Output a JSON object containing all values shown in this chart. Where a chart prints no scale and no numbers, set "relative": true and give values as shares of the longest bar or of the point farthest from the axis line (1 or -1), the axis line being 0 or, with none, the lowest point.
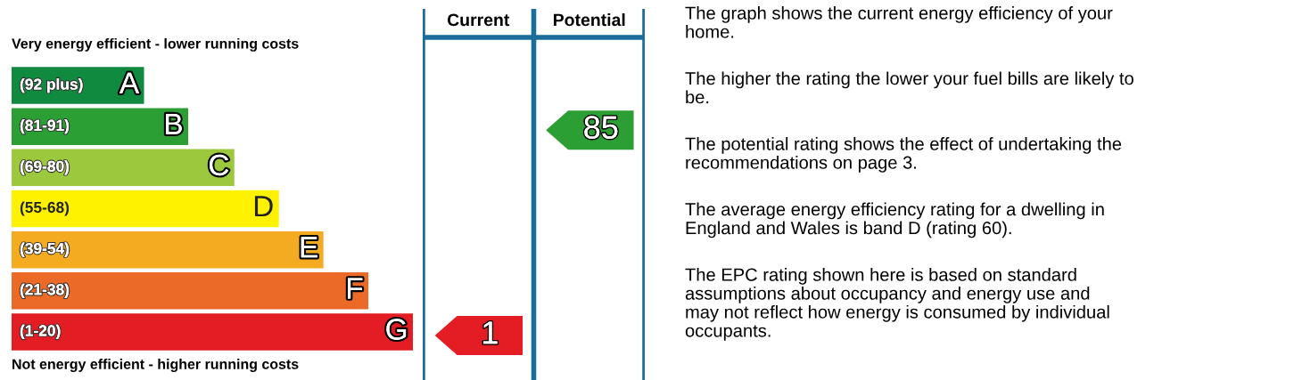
{
  "chart_data": [
    {
      "type": "bar",
      "orientation": "horizontal",
      "relative": true,
      "title": "Very energy efficient - lower running costs",
      "categories": [
        "A",
        "B",
        "C",
        "D",
        "E",
        "F",
        "G"
      ],
      "values": [
        0.33,
        0.44,
        0.555,
        0.666,
        0.777,
        0.889,
        1
      ],
      "colors": [
        "#0f8a3f",
        "#2b9e34",
        "#9bc83c",
        "#fff200",
        "#f5ab21",
        "#ec6a27",
        "#e31d23"
      ],
      "annotations": [
        "(92 plus)",
        "(81-91)",
        "(69-80)",
        "(55-68)",
        "(39-54)",
        "(21-38)",
        "(1-20)",
        "Not energy efficient - higher running costs"
      ]
    },
    {
      "type": "other",
      "categories": [
        "Current",
        "Potential"
      ],
      "values": [
        1,
        85
      ],
      "colors": [
        "#e31d23",
        "#2b9e34"
      ],
      "data_labels": true
    },
    {
      "type": "other",
      "annotations": [
        "The graph shows the current energy efficiency of your\nhome.",
        "The higher the rating the lower your fuel bills are likely to\nbe.",
        "The potential rating shows the effect of undertaking the\nrecommendations on page 3.",
        "The average energy efficiency rating for a dwelling in\nEngland and Wales is band D (rating 60).",
        "The EPC rating shown here is based on standard\nassumptions about occupancy and energy use and\nmay not reflect how energy is consumed by individual\noccupants."
      ]
    }
  ]
}
